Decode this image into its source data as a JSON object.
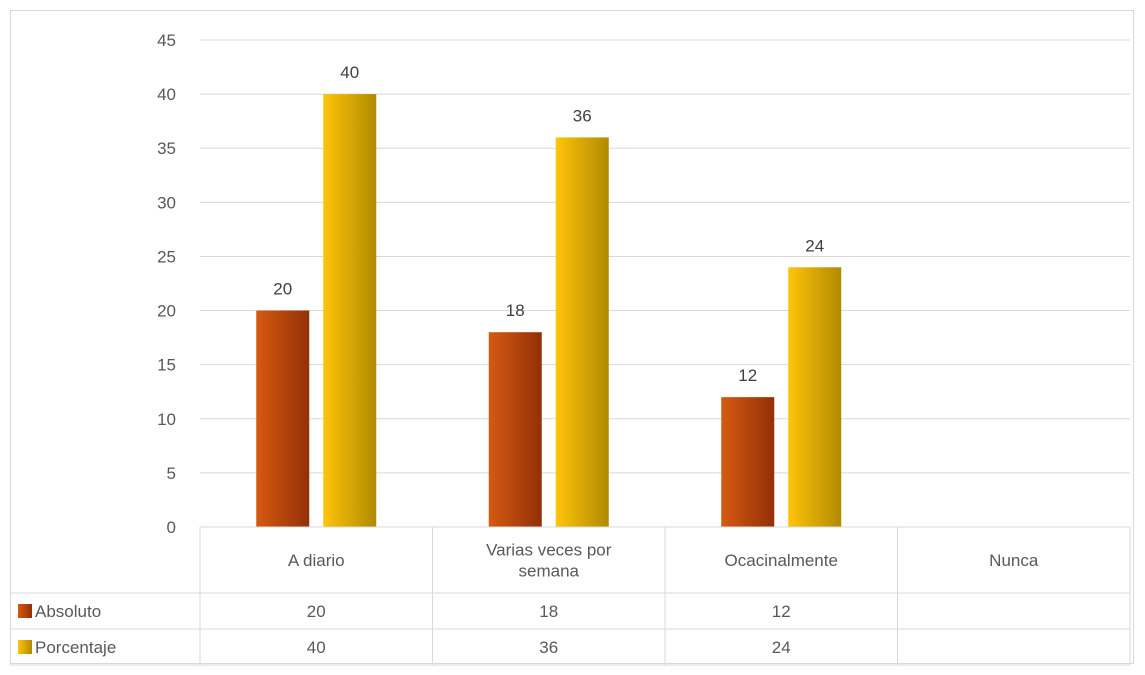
{
  "chart_data": {
    "type": "bar",
    "categories": [
      "A diario",
      "Varias veces por semana",
      "Ocacinalmente",
      "Nunca"
    ],
    "category_lines": [
      [
        "A diario"
      ],
      [
        "Varias veces por",
        "semana"
      ],
      [
        "Ocacinalmente"
      ],
      [
        "Nunca"
      ]
    ],
    "series": [
      {
        "name": "Absoluto",
        "values": [
          20,
          18,
          12,
          null
        ],
        "value_labels": [
          "20",
          "18",
          "12",
          ""
        ],
        "color_dark": "#933007",
        "color_light": "#d55a12"
      },
      {
        "name": "Porcentaje",
        "values": [
          40,
          36,
          24,
          null
        ],
        "value_labels": [
          "40",
          "36",
          "24",
          ""
        ],
        "color_dark": "#b08a00",
        "color_light": "#ffc40a"
      }
    ],
    "title": "",
    "xlabel": "",
    "ylabel": "",
    "ylim": [
      0,
      45
    ],
    "yticks": [
      "0",
      "5",
      "10",
      "15",
      "20",
      "25",
      "30",
      "35",
      "40",
      "45"
    ],
    "grid": true,
    "legend": "data-table",
    "data_table": true
  },
  "colors": {
    "gridline": "#d9d9d9",
    "text": "#595959"
  }
}
